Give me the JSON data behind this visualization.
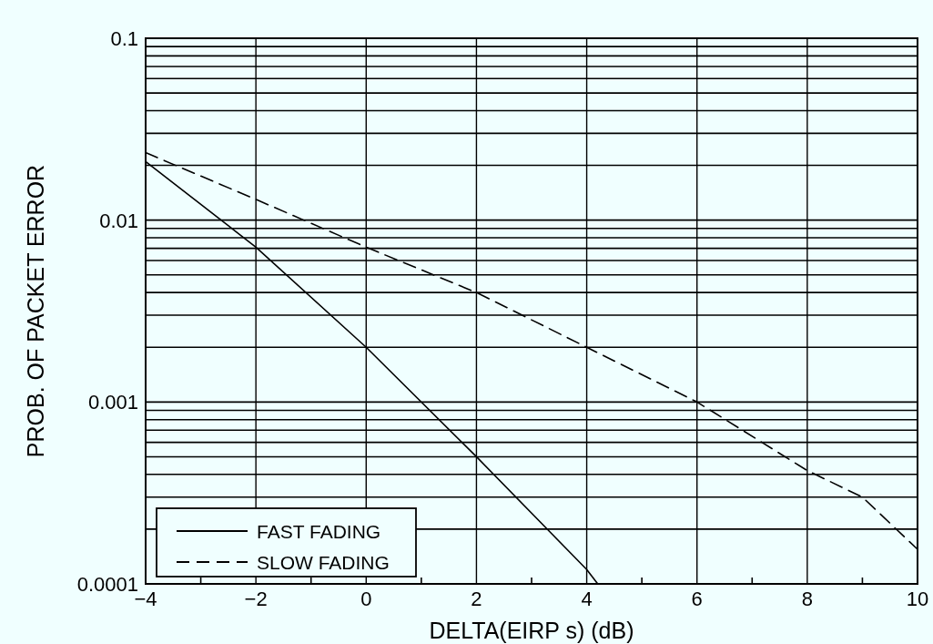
{
  "chart_data": {
    "type": "line",
    "xlabel": "DELTA(EIRP s)  (dB)",
    "ylabel": "PROB. OF PACKET ERROR",
    "log": "y",
    "grid": true,
    "legend": "bottom left",
    "xlim": [
      -4,
      10
    ],
    "xticks": [
      -4,
      {
        "value": -3,
        "label": null
      },
      -2,
      {
        "value": -1,
        "label": null
      },
      0,
      {
        "value": 1,
        "label": null
      },
      2,
      {
        "value": 3,
        "label": null
      },
      4,
      {
        "value": 5,
        "label": null
      },
      6,
      {
        "value": 7,
        "label": null
      },
      8,
      {
        "value": 9,
        "label": null
      },
      10
    ],
    "ylim": [
      0.0001,
      0.1
    ],
    "yticks": [
      0.0001,
      {
        "value": 0.0002,
        "label": null
      },
      {
        "value": 0.0003,
        "label": null
      },
      {
        "value": 0.0004,
        "label": null
      },
      {
        "value": 0.0005,
        "label": null
      },
      {
        "value": 0.0006,
        "label": null
      },
      {
        "value": 0.0007,
        "label": null
      },
      {
        "value": 0.0008,
        "label": null
      },
      {
        "value": 0.0009,
        "label": null
      },
      0.001,
      {
        "value": 0.002,
        "label": null
      },
      {
        "value": 0.003,
        "label": null
      },
      {
        "value": 0.004,
        "label": null
      },
      {
        "value": 0.005,
        "label": null
      },
      {
        "value": 0.006,
        "label": null
      },
      {
        "value": 0.007,
        "label": null
      },
      {
        "value": 0.008,
        "label": null
      },
      {
        "value": 0.009,
        "label": null
      },
      0.01,
      {
        "value": 0.02,
        "label": null
      },
      {
        "value": 0.03,
        "label": null
      },
      {
        "value": 0.04,
        "label": null
      },
      {
        "value": 0.05,
        "label": null
      },
      {
        "value": 0.06,
        "label": null
      },
      {
        "value": 0.07,
        "label": null
      },
      {
        "value": 0.08,
        "label": null
      },
      {
        "value": 0.09,
        "label": null
      },
      0.1
    ],
    "series": [
      {
        "name": "FAST FADING",
        "color": "#000000",
        "line_style": "solid",
        "x": [
          -4,
          -2,
          0,
          2,
          4,
          4.2
        ],
        "values": [
          0.021,
          0.0071,
          0.002,
          0.0005,
          0.00012,
          0.0001
        ]
      },
      {
        "name": "SLOW FADING",
        "color": "#000000",
        "line_style": "dashed",
        "x": [
          -4,
          -2,
          0,
          2,
          4,
          6,
          8,
          9,
          10
        ],
        "values": [
          0.0235,
          0.013,
          0.0071,
          0.004,
          0.002,
          0.001,
          0.00042,
          0.0003,
          0.000155
        ]
      }
    ]
  }
}
